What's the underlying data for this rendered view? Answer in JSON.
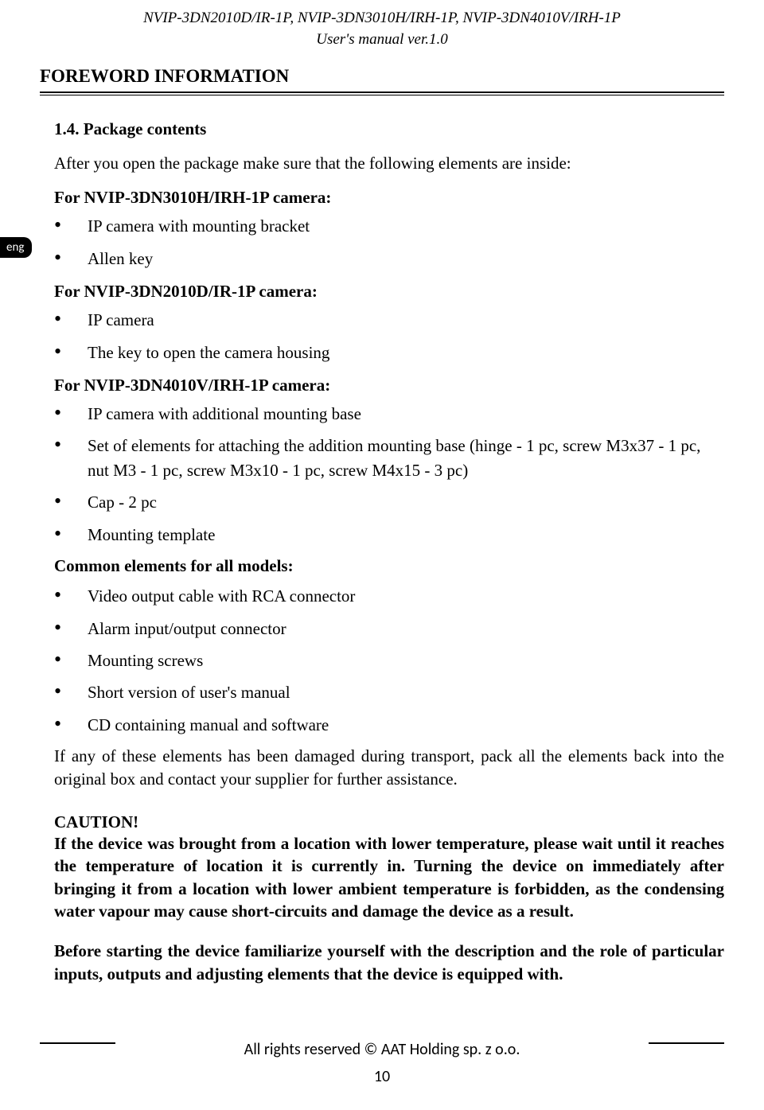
{
  "header": {
    "line1": "NVIP-3DN2010D/IR-1P, NVIP-3DN3010H/IRH-1P, NVIP-3DN4010V/IRH-1P",
    "line2": "User's manual ver.1.0"
  },
  "section_title": "FOREWORD INFORMATION",
  "subsection_title": "1.4. Package contents",
  "intro_text": "After you open the package make sure that the following elements are inside:",
  "lang_tab": "eng",
  "camera1": {
    "header": "For NVIP-3DN3010H/IRH-1P camera:",
    "items": [
      "IP camera with mounting bracket",
      "Allen key"
    ]
  },
  "camera2": {
    "header": "For NVIP-3DN2010D/IR-1P camera:",
    "items": [
      "IP camera",
      "The key to open the camera housing"
    ]
  },
  "camera3": {
    "header": "For NVIP-3DN4010V/IRH-1P camera:",
    "items": [
      "IP camera with additional mounting base",
      "Set of elements for attaching the addition mounting base (hinge - 1 pc, screw M3x37 - 1 pc, nut M3 - 1 pc, screw M3x10 - 1 pc, screw M4x15 - 3 pc)",
      "Cap - 2 pc",
      "Mounting template"
    ]
  },
  "common": {
    "header": "Common elements for all models:",
    "items": [
      "Video output cable with RCA connector",
      "Alarm input/output connector",
      "Mounting screws",
      "Short version of user's manual",
      "CD containing manual and software"
    ]
  },
  "damage_text": "If any of these elements has been damaged during transport, pack all the elements back into the original box and contact your supplier for further assistance.",
  "caution": {
    "title": "CAUTION!",
    "text1": "If the device was brought from a location with lower temperature, please wait until it reaches the temperature of location it is currently in. Turning the device on immediately after bringing it from a location with lower ambient temperature is forbidden, as the condensing water vapour may cause short-circuits and damage the device as a result.",
    "text2": "Before starting the device familiarize yourself with the description and the role of particular inputs, outputs and adjusting elements that the device is equipped with."
  },
  "footer": {
    "rights": "All rights reserved © AAT Holding sp. z o.o.",
    "page": "10"
  }
}
